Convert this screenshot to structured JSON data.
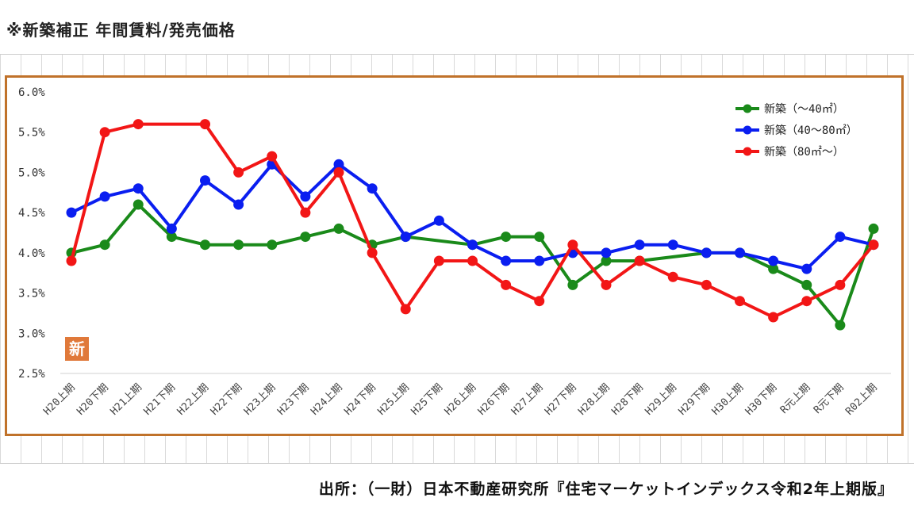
{
  "page": {
    "title": "※新築補正 年間賃料/発売価格",
    "source": "出所：（一財）日本不動産研究所『住宅マーケットインデックス令和2年上期版』"
  },
  "chart_data": {
    "type": "line",
    "categories": [
      "H20上期",
      "H20下期",
      "H21上期",
      "H21下期",
      "H22上期",
      "H22下期",
      "H23上期",
      "H23下期",
      "H24上期",
      "H24下期",
      "H25上期",
      "H25下期",
      "H26上期",
      "H26下期",
      "H27上期",
      "H27下期",
      "H28上期",
      "H28下期",
      "H29上期",
      "H29下期",
      "H30上期",
      "H30下期",
      "R元上期",
      "R元下期",
      "R02上期"
    ],
    "y_ticks": [
      "2.5%",
      "3.0%",
      "3.5%",
      "4.0%",
      "4.5%",
      "5.0%",
      "5.5%",
      "6.0%"
    ],
    "ylim": [
      2.5,
      6.0
    ],
    "grid": "horizontal-baseline",
    "legend_position": "top-right",
    "badge": "新",
    "series": [
      {
        "name": "新築（～40㎡）",
        "color": "#1a8a1a",
        "values": [
          4.0,
          4.1,
          4.6,
          4.2,
          4.1,
          4.1,
          4.1,
          4.2,
          4.3,
          4.1,
          4.2,
          null,
          4.1,
          4.2,
          4.2,
          3.6,
          3.9,
          3.9,
          null,
          4.0,
          4.0,
          3.8,
          3.6,
          3.1,
          4.3
        ]
      },
      {
        "name": "新築（40～80㎡）",
        "color": "#0a1ef0",
        "values": [
          4.5,
          4.7,
          4.8,
          4.3,
          4.9,
          4.6,
          5.1,
          4.7,
          5.1,
          4.8,
          4.2,
          4.4,
          4.1,
          3.9,
          3.9,
          4.0,
          4.0,
          4.1,
          4.1,
          4.0,
          4.0,
          3.9,
          3.8,
          4.2,
          4.1
        ]
      },
      {
        "name": "新築（80㎡～）",
        "color": "#f21616",
        "values": [
          3.9,
          5.5,
          5.6,
          null,
          5.6,
          5.0,
          5.2,
          4.5,
          5.0,
          4.0,
          3.3,
          3.9,
          3.9,
          3.6,
          3.4,
          4.1,
          3.6,
          3.9,
          3.7,
          3.6,
          3.4,
          3.2,
          3.4,
          3.6,
          4.1
        ]
      }
    ]
  }
}
